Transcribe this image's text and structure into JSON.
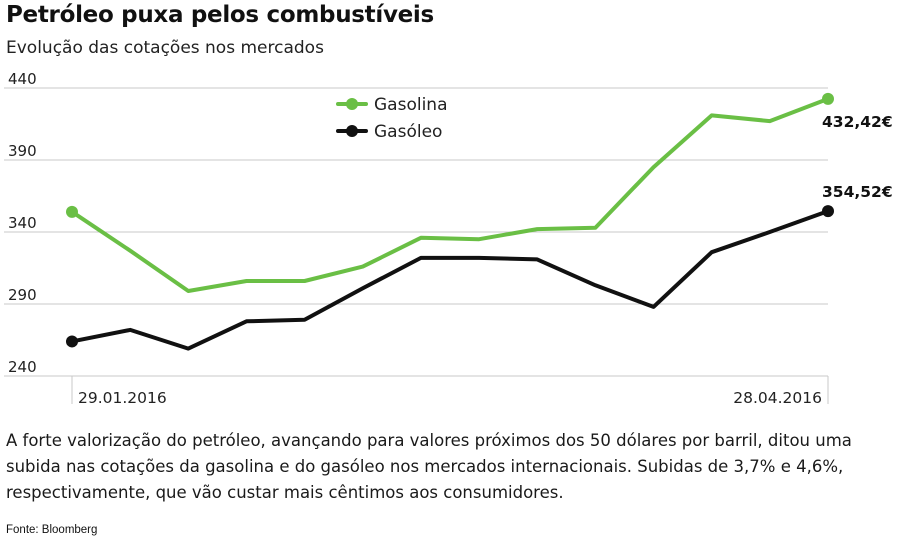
{
  "title": "Petróleo puxa pelos combustíveis",
  "subtitle": "Evolução das cotações nos mercados",
  "description": "A forte valorização do petróleo, avançando para valores próximos dos 50 dólares por barril, ditou uma subida nas cotações da gasolina e do gasóleo nos mercados internacionais. Subidas de 3,7% e 4,6%, respectivamente, que vão custar mais cêntimos aos consumidores.",
  "source": "Fonte: Bloomberg",
  "chart_data": {
    "type": "line",
    "ylim": [
      240,
      440
    ],
    "yticks": [
      240,
      290,
      340,
      390,
      440
    ],
    "ytick_labels": [
      "240",
      "290",
      "340",
      "390",
      "440"
    ],
    "x_start_label": "29.01.2016",
    "x_end_label": "28.04.2016",
    "grid": true,
    "legend_position": "top-center",
    "series": [
      {
        "name": "Gasolina",
        "color": "#6abf45",
        "values": [
          354,
          327,
          299,
          306,
          306,
          316,
          336,
          335,
          342,
          343,
          385,
          421,
          417,
          432.42
        ],
        "end_label": "432,42€"
      },
      {
        "name": "Gasóleo",
        "color": "#111111",
        "values": [
          264,
          272,
          259,
          278,
          279,
          301,
          322,
          322,
          321,
          303,
          288,
          326,
          340,
          354.52
        ],
        "end_label": "354,52€"
      }
    ]
  }
}
